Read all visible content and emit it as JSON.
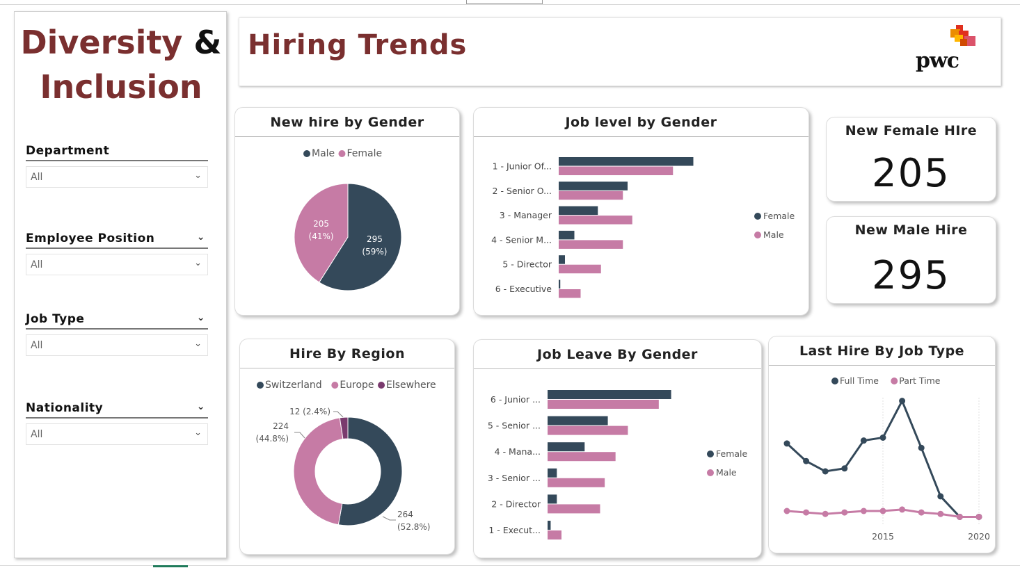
{
  "colors": {
    "dark": "#34495a",
    "pink": "#c67ba5",
    "purple": "#7a3b6e",
    "brand": "#7a2f2f"
  },
  "sidebar": {
    "brand_line1": "Diversity",
    "brand_amp": "&",
    "brand_line2": "Inclusion",
    "slicers": [
      {
        "title": "Department",
        "value": "All"
      },
      {
        "title": "Employee Position",
        "value": "All"
      },
      {
        "title": "Job Type",
        "value": "All"
      },
      {
        "title": "Nationality",
        "value": "All"
      }
    ]
  },
  "header": {
    "title": "Hiring Trends",
    "logo_text": "pwc"
  },
  "kpis": {
    "female": {
      "title": "New Female HIre",
      "value": "205"
    },
    "male": {
      "title": "New Male Hire",
      "value": "295"
    }
  },
  "chart_data": [
    {
      "id": "new_hire_gender",
      "type": "pie",
      "title": "New hire by Gender",
      "legend": [
        "Male",
        "Female"
      ],
      "slices": [
        {
          "name": "Male",
          "value": 295,
          "label": "295",
          "pct": "(59%)"
        },
        {
          "name": "Female",
          "value": 205,
          "label": "205",
          "pct": "(41%)"
        }
      ]
    },
    {
      "id": "job_level_gender",
      "type": "bar",
      "orientation": "horizontal",
      "title": "Job level by Gender",
      "categories": [
        "1 - Junior Of...",
        "2 - Senior O...",
        "3 - Manager",
        "4 - Senior M...",
        "5 - Director",
        "6 - Executive"
      ],
      "series": [
        {
          "name": "Female",
          "values": [
            86,
            44,
            25,
            10,
            4,
            1
          ]
        },
        {
          "name": "Male",
          "values": [
            73,
            41,
            47,
            41,
            27,
            14
          ]
        }
      ],
      "legend": [
        "Female",
        "Male"
      ],
      "xlim": [
        0,
        100
      ]
    },
    {
      "id": "hire_region",
      "type": "pie",
      "subtype": "donut",
      "title": "Hire By Region",
      "legend": [
        "Switzerland",
        "Europe",
        "Elsewhere"
      ],
      "slices": [
        {
          "name": "Switzerland",
          "value": 264,
          "label": "264",
          "pct": "(52.8%)"
        },
        {
          "name": "Europe",
          "value": 224,
          "label": "224",
          "pct": "(44.8%)"
        },
        {
          "name": "Elsewhere",
          "value": 12,
          "label": "12 (2.4%)",
          "pct": ""
        }
      ]
    },
    {
      "id": "job_leave_gender",
      "type": "bar",
      "orientation": "horizontal",
      "title": "Job Leave By Gender",
      "categories": [
        "6 - Junior ...",
        "5 - Senior ...",
        "4 - Mana...",
        "3 - Senior ...",
        "2 - Director",
        "1 - Execut..."
      ],
      "series": [
        {
          "name": "Female",
          "values": [
            80,
            39,
            24,
            6,
            6,
            2
          ]
        },
        {
          "name": "Male",
          "values": [
            72,
            52,
            44,
            37,
            34,
            9
          ]
        }
      ],
      "legend": [
        "Female",
        "Male"
      ],
      "xlim": [
        0,
        100
      ]
    },
    {
      "id": "last_hire_job_type",
      "type": "line",
      "title": "Last Hire By Job Type",
      "x": [
        2010,
        2011,
        2012,
        2013,
        2014,
        2015,
        2016,
        2017,
        2018,
        2019,
        2020
      ],
      "x_ticks": [
        "2015",
        "2020"
      ],
      "series": [
        {
          "name": "Full Time",
          "values": [
            55,
            43,
            36,
            38,
            57,
            59,
            84,
            52,
            19,
            5,
            5
          ]
        },
        {
          "name": "Part Time",
          "values": [
            9,
            8,
            7,
            8,
            9,
            9,
            10,
            8,
            7,
            5,
            5
          ]
        }
      ],
      "legend": [
        "Full Time",
        "Part Time"
      ],
      "ylim": [
        0,
        90
      ]
    }
  ]
}
